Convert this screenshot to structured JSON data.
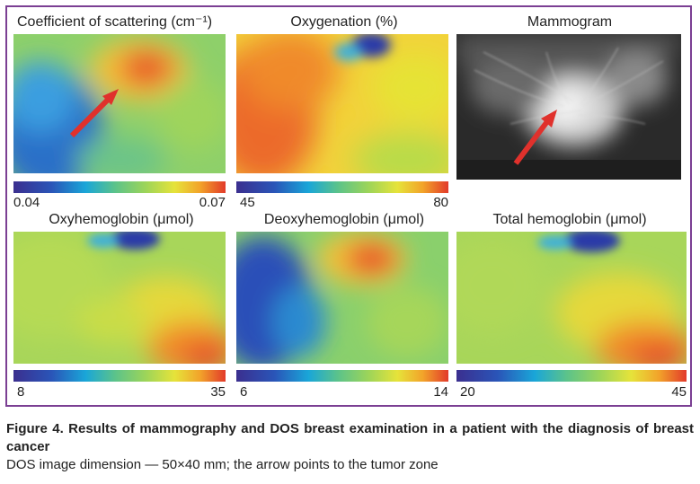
{
  "panels": [
    {
      "title": "Coefficient of scattering (cm⁻¹)",
      "min": "0.04",
      "max": "0.07"
    },
    {
      "title": "Oxygenation (%)",
      "min": "45",
      "max": "80"
    },
    {
      "title": "Mammogram"
    },
    {
      "title": "Oxyhemoglobin (μmol)",
      "min": "8",
      "max": "35"
    },
    {
      "title": "Deoxyhemoglobin (μmol)",
      "min": "6",
      "max": "14"
    },
    {
      "title": "Total hemoglobin (μmol)",
      "min": "20",
      "max": "45"
    }
  ],
  "caption": {
    "title": "Figure 4. Results of mammography and DOS breast examination in a patient with the diagnosis of breast cancer",
    "note": "DOS image dimension — 50×40 mm; the arrow points to the tumor zone"
  },
  "colors": {
    "frame": "#7b3f93",
    "arrow": "#e0312c"
  }
}
